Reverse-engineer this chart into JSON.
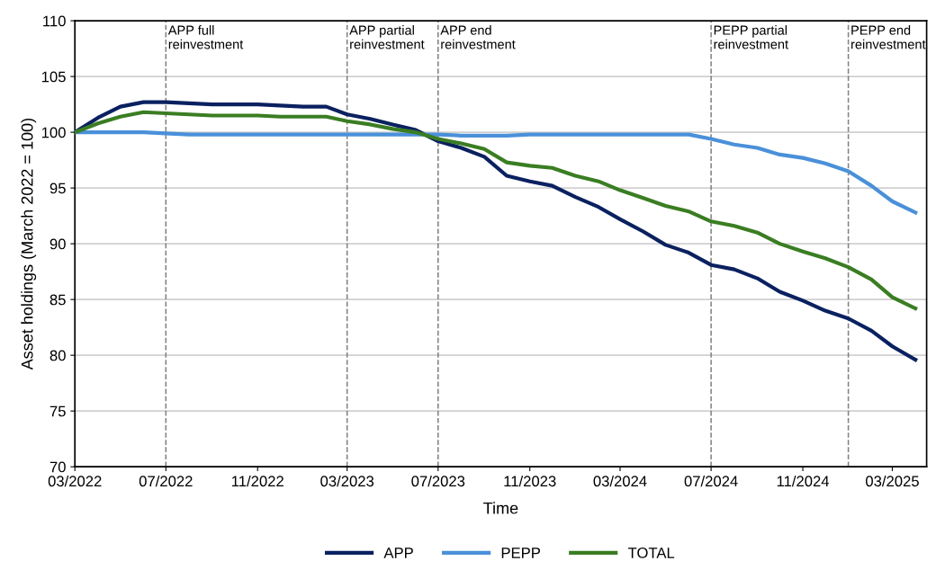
{
  "chart_data": {
    "type": "line",
    "xlabel": "Time",
    "ylabel": "Asset holdings (March 2022 = 100)",
    "x": [
      "2022-03",
      "2022-04",
      "2022-05",
      "2022-06",
      "2022-07",
      "2022-08",
      "2022-09",
      "2022-10",
      "2022-11",
      "2022-12",
      "2023-01",
      "2023-02",
      "2023-03",
      "2023-04",
      "2023-05",
      "2023-06",
      "2023-07",
      "2023-08",
      "2023-09",
      "2023-10",
      "2023-11",
      "2023-12",
      "2024-01",
      "2024-02",
      "2024-03",
      "2024-04",
      "2024-05",
      "2024-06",
      "2024-07",
      "2024-08",
      "2024-09",
      "2024-10",
      "2024-11",
      "2024-12",
      "2025-01",
      "2025-02",
      "2025-03",
      "2025-04"
    ],
    "series": [
      {
        "name": "APP",
        "color": "#0a2160",
        "values": [
          100,
          101.3,
          102.3,
          102.7,
          102.7,
          102.6,
          102.5,
          102.5,
          102.5,
          102.4,
          102.3,
          102.3,
          101.6,
          101.2,
          100.7,
          100.2,
          99.2,
          98.6,
          97.8,
          96.1,
          95.6,
          95.2,
          94.2,
          93.3,
          92.2,
          91.1,
          89.9,
          89.2,
          88.1,
          87.7,
          86.9,
          85.7,
          84.9,
          84.0,
          83.3,
          82.2,
          80.8,
          79.6
        ]
      },
      {
        "name": "PEPP",
        "color": "#4a90d9",
        "values": [
          100,
          100,
          100,
          100,
          99.9,
          99.8,
          99.8,
          99.8,
          99.8,
          99.8,
          99.8,
          99.8,
          99.8,
          99.8,
          99.8,
          99.8,
          99.8,
          99.7,
          99.7,
          99.7,
          99.8,
          99.8,
          99.8,
          99.8,
          99.8,
          99.8,
          99.8,
          99.8,
          99.4,
          98.9,
          98.6,
          98.0,
          97.7,
          97.2,
          96.5,
          95.2,
          93.8,
          92.8
        ]
      },
      {
        "name": "TOTAL",
        "color": "#3a7d22",
        "values": [
          100,
          100.8,
          101.4,
          101.8,
          101.7,
          101.6,
          101.5,
          101.5,
          101.5,
          101.4,
          101.4,
          101.4,
          101.0,
          100.7,
          100.3,
          100.0,
          99.4,
          99.0,
          98.5,
          97.3,
          97.0,
          96.8,
          96.1,
          95.6,
          94.8,
          94.1,
          93.4,
          92.9,
          92.0,
          91.6,
          91.0,
          90.0,
          89.3,
          88.7,
          87.9,
          86.8,
          85.2,
          84.2
        ]
      }
    ],
    "xlim": [
      "2022-03-01",
      "2025-04-16"
    ],
    "xticks": [
      {
        "value": "2022-03",
        "label": "03/2022"
      },
      {
        "value": "2022-07",
        "label": "07/2022"
      },
      {
        "value": "2022-11",
        "label": "11/2022"
      },
      {
        "value": "2023-03",
        "label": "03/2023"
      },
      {
        "value": "2023-07",
        "label": "07/2023"
      },
      {
        "value": "2023-11",
        "label": "11/2023"
      },
      {
        "value": "2024-03",
        "label": "03/2024"
      },
      {
        "value": "2024-07",
        "label": "07/2024"
      },
      {
        "value": "2024-11",
        "label": "11/2024"
      },
      {
        "value": "2025-03",
        "label": "03/2025"
      }
    ],
    "ylim": [
      70,
      110
    ],
    "yticks": [
      70,
      75,
      80,
      85,
      90,
      95,
      100,
      105,
      110
    ],
    "ref_lines": [
      {
        "axis": "x",
        "value": "2022-07",
        "label": "APP full\nreinvestment",
        "color": "#808080",
        "line_style": "dashed"
      },
      {
        "axis": "x",
        "value": "2023-03",
        "label": "APP partial\nreinvestment",
        "color": "#808080",
        "line_style": "dashed"
      },
      {
        "axis": "x",
        "value": "2023-07",
        "label": "APP end\nreinvestment",
        "color": "#808080",
        "line_style": "dashed"
      },
      {
        "axis": "x",
        "value": "2024-07",
        "label": "PEPP partial\nreinvestment",
        "color": "#808080",
        "line_style": "dashed"
      },
      {
        "axis": "x",
        "value": "2025-01",
        "label": "PEPP end\nreinvestment",
        "color": "#808080",
        "line_style": "dashed"
      }
    ],
    "grid": "y",
    "legend": "bottom",
    "marker": "none",
    "line_style": "solid"
  }
}
